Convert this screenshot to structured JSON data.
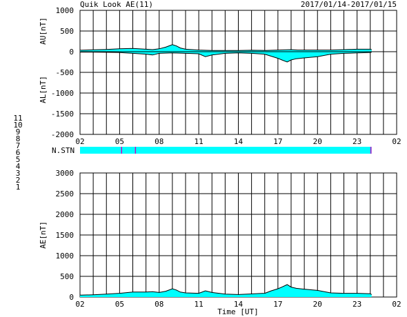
{
  "header": {
    "title": "Quik Look AE(11)",
    "date_range": "2017/01/14-2017/01/15"
  },
  "colors": {
    "fill": "#00ffff",
    "line": "#000000",
    "axis": "#000000"
  },
  "station_legend": [
    {
      "label": "11",
      "color": "#00ffff"
    },
    {
      "label": "10",
      "color": "#ff00ff"
    },
    {
      "label": "9",
      "color": "#0000ff"
    },
    {
      "label": "8",
      "color": "#ffff00"
    },
    {
      "label": "7",
      "color": "#80ff80"
    },
    {
      "label": "6",
      "color": "#ff0000"
    },
    {
      "label": "5",
      "color": "#d0d0d0"
    },
    {
      "label": "4",
      "color": "#a0a0a0"
    },
    {
      "label": "3",
      "color": "#00c0c0"
    },
    {
      "label": "2",
      "color": "#c000c0"
    },
    {
      "label": "1",
      "color": "#0000c0"
    }
  ],
  "chart_data": [
    {
      "type": "area",
      "panel": "AU/AL",
      "ylabel_upper": "AU[nT]",
      "ylabel_lower": "AL[nT]",
      "ylim": [
        -2000,
        1000
      ],
      "yticks": [
        "1000",
        "500",
        "0",
        "-500",
        "-1000",
        "-1500",
        "-2000"
      ],
      "xticks": [
        "02",
        "05",
        "08",
        "11",
        "14",
        "17",
        "20",
        "23",
        "02"
      ],
      "xlim_hours": [
        2,
        26
      ],
      "grid": true,
      "data_end_hour": 24.1,
      "au": {
        "x": [
          2,
          3,
          4,
          5,
          6,
          7,
          7.5,
          8,
          8.5,
          9,
          9.3,
          9.6,
          10,
          11,
          12,
          13,
          14,
          15,
          16,
          17,
          18,
          18.5,
          19,
          20,
          21,
          22,
          23,
          24,
          24.1
        ],
        "y": [
          35,
          45,
          55,
          70,
          80,
          60,
          50,
          70,
          110,
          170,
          140,
          90,
          60,
          40,
          30,
          30,
          30,
          35,
          30,
          40,
          50,
          40,
          40,
          40,
          40,
          50,
          60,
          60,
          50
        ]
      },
      "al": {
        "x": [
          2,
          3,
          4,
          5,
          6,
          7,
          7.5,
          8,
          9,
          10,
          11,
          11.5,
          12,
          13,
          14,
          15,
          16,
          16.5,
          17,
          17.3,
          17.7,
          18,
          18.4,
          19,
          20,
          21,
          22,
          23,
          24,
          24.1
        ],
        "y": [
          -10,
          -10,
          -15,
          -20,
          -40,
          -60,
          -80,
          -40,
          -30,
          -40,
          -50,
          -120,
          -80,
          -40,
          -30,
          -40,
          -60,
          -110,
          -160,
          -200,
          -250,
          -200,
          -170,
          -150,
          -120,
          -60,
          -40,
          -30,
          -20,
          -10
        ]
      }
    },
    {
      "type": "bar",
      "panel": "N.STN",
      "label": "N.STN",
      "xlim_hours": [
        2,
        26
      ],
      "segments": [
        {
          "start": 2,
          "end": 5.1,
          "stations": 11
        },
        {
          "start": 5.1,
          "end": 6.15,
          "stations": 11
        },
        {
          "start": 6.15,
          "end": 24.1,
          "stations": 11
        }
      ],
      "separators": [
        {
          "hour": 5.15,
          "color": "#c000c0"
        },
        {
          "hour": 6.2,
          "color": "#c000c0"
        },
        {
          "hour": 24.05,
          "color": "#c000c0"
        }
      ]
    },
    {
      "type": "area",
      "panel": "AE",
      "ylabel": "AE[nT]",
      "xlabel": "Time [UT]",
      "ylim": [
        0,
        3000
      ],
      "yticks": [
        "3000",
        "2500",
        "2000",
        "1500",
        "1000",
        "500",
        "0"
      ],
      "xticks": [
        "02",
        "05",
        "08",
        "11",
        "14",
        "17",
        "20",
        "23",
        "02"
      ],
      "xlim_hours": [
        2,
        26
      ],
      "grid": true,
      "x": [
        2,
        3,
        4,
        5,
        6,
        7,
        7.5,
        8,
        8.5,
        9,
        9.3,
        9.6,
        10,
        11,
        11.5,
        12,
        13,
        14,
        15,
        16,
        16.5,
        17,
        17.3,
        17.7,
        18,
        18.4,
        19,
        20,
        21,
        22,
        23,
        24,
        24.1
      ],
      "y": [
        45,
        55,
        70,
        90,
        120,
        120,
        130,
        110,
        140,
        200,
        170,
        120,
        100,
        90,
        150,
        110,
        70,
        60,
        75,
        90,
        150,
        200,
        240,
        300,
        240,
        210,
        190,
        160,
        100,
        90,
        90,
        80,
        60
      ]
    }
  ]
}
